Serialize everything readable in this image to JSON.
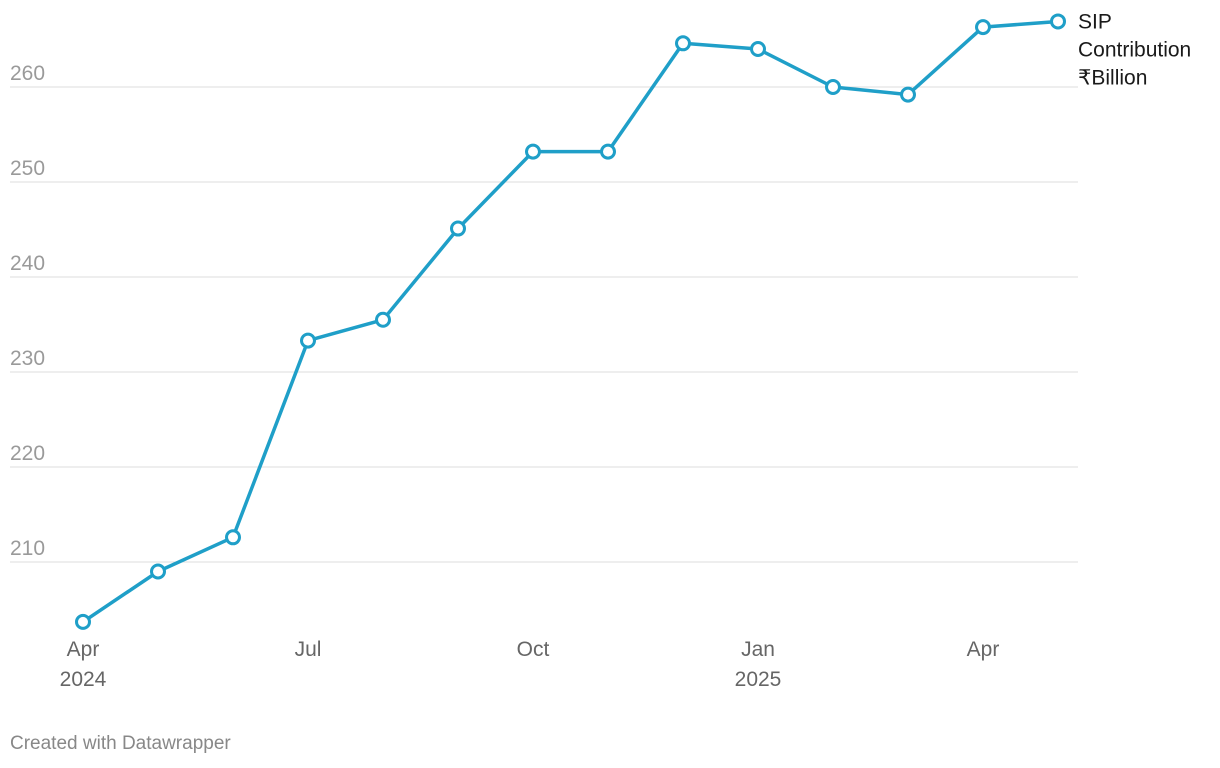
{
  "chart_data": {
    "type": "line",
    "x": [
      "2024-04",
      "2024-05",
      "2024-06",
      "2024-07",
      "2024-08",
      "2024-09",
      "2024-10",
      "2024-11",
      "2024-12",
      "2025-01",
      "2025-02",
      "2025-03",
      "2025-04",
      "2025-05"
    ],
    "series": [
      {
        "name": "SIP Contribution ₹Billion",
        "values": [
          203.7,
          209.0,
          212.6,
          233.3,
          235.5,
          245.1,
          253.2,
          253.2,
          264.6,
          264.0,
          260.0,
          259.2,
          266.3,
          266.9
        ]
      }
    ],
    "ylim": [
      203,
      267
    ],
    "yticks": [
      210,
      220,
      230,
      240,
      250,
      260
    ],
    "xticks": [
      {
        "x": "2024-04",
        "label": "Apr",
        "sublabel": "2024"
      },
      {
        "x": "2024-07",
        "label": "Jul",
        "sublabel": ""
      },
      {
        "x": "2024-10",
        "label": "Oct",
        "sublabel": ""
      },
      {
        "x": "2025-01",
        "label": "Jan",
        "sublabel": "2025"
      },
      {
        "x": "2025-04",
        "label": "Apr",
        "sublabel": ""
      }
    ],
    "series_label_lines": [
      "SIP",
      "Contribution",
      "₹Billion"
    ],
    "series_color": "#1f9fc8",
    "grid": true,
    "title": "",
    "xlabel": "",
    "ylabel": ""
  },
  "footer": {
    "credit": "Created with Datawrapper"
  }
}
